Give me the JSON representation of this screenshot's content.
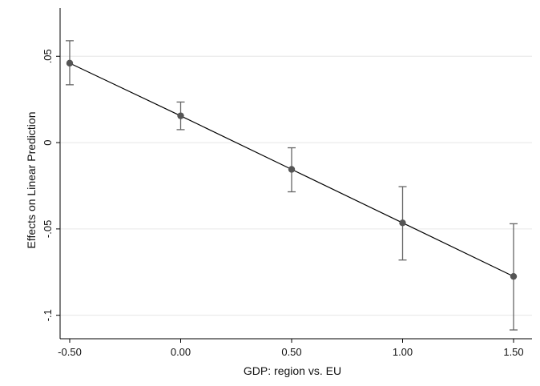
{
  "chart_data": {
    "type": "line",
    "title": "",
    "xlabel": "GDP: region vs. EU",
    "ylabel": "Effects on Linear Prediction",
    "x": [
      -0.5,
      0.0,
      0.5,
      1.0,
      1.5
    ],
    "x_tick_values": [
      -0.5,
      0.0,
      0.5,
      1.0,
      1.5
    ],
    "x_tick_labels": [
      "-0.50",
      "0.00",
      "0.50",
      "1.00",
      "1.50"
    ],
    "y_tick_values": [
      0.05,
      0,
      -0.05,
      -0.1
    ],
    "y_tick_labels": [
      ".05",
      "0",
      "-.05",
      "-.1"
    ],
    "xlim": [
      -0.5,
      1.5
    ],
    "ylim": [
      -0.1085,
      0.0645
    ],
    "grid": true,
    "legend": "none",
    "series": [
      {
        "values": [
          0.046,
          0.0155,
          -0.0155,
          -0.0465,
          -0.0775
        ],
        "ci_lower": [
          0.0335,
          0.0075,
          -0.0285,
          -0.068,
          -0.1085
        ],
        "ci_upper": [
          0.059,
          0.0235,
          -0.003,
          -0.0255,
          -0.047
        ]
      }
    ],
    "colors": {
      "line": "#000000",
      "marker": "#555555",
      "errorbar": "#666666",
      "grid": "#e6e6e6",
      "axis": "#000000"
    }
  }
}
